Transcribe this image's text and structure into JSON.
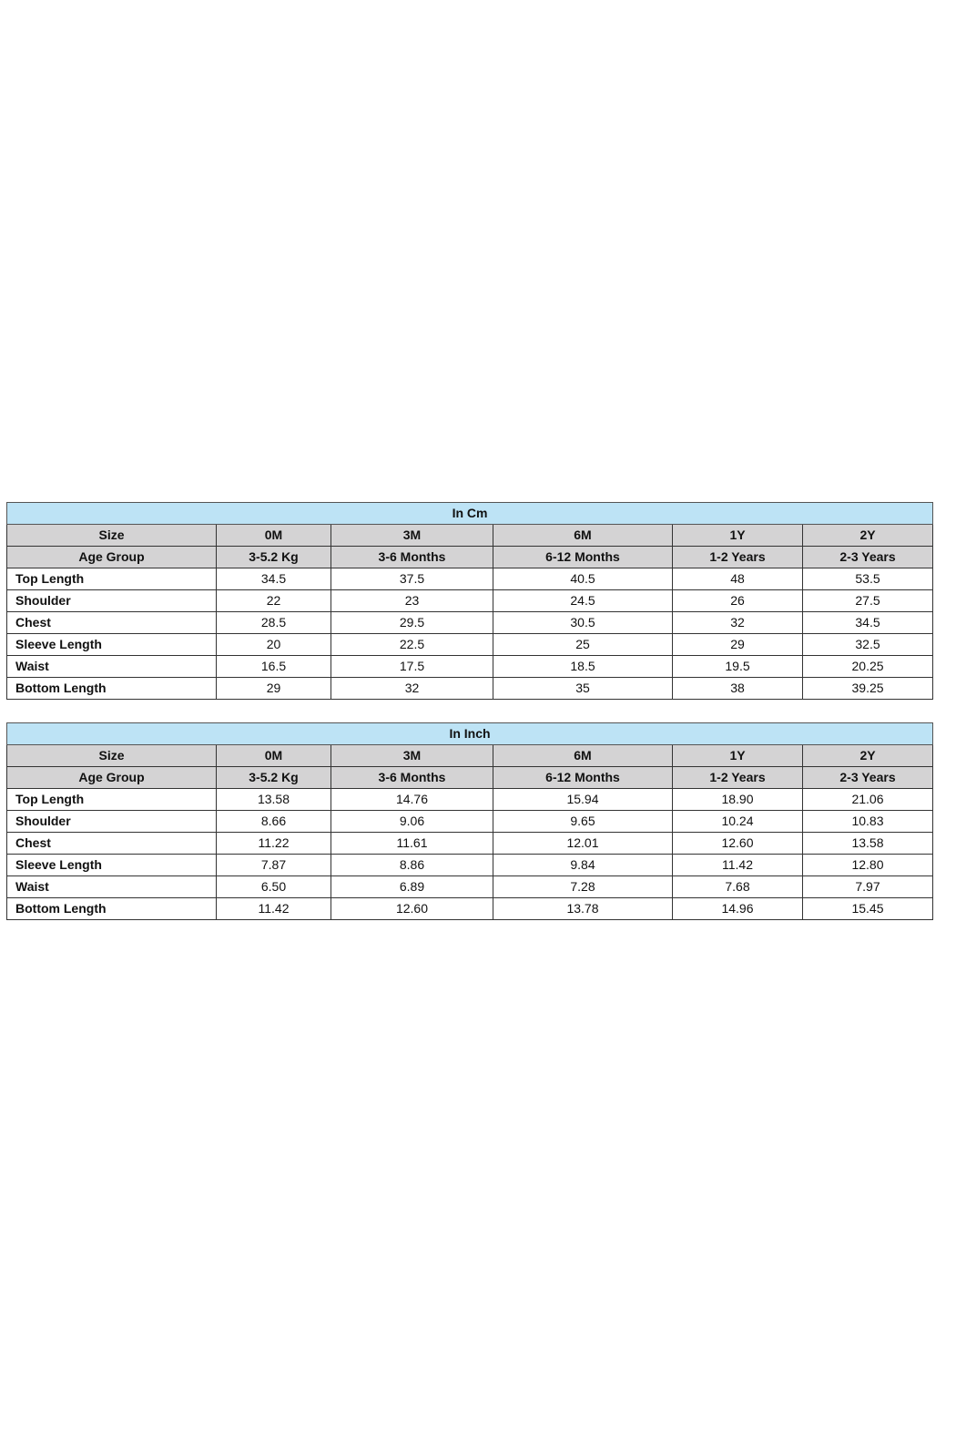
{
  "tables": [
    {
      "title": "In Cm",
      "header_rows": [
        [
          "Size",
          "0M",
          "3M",
          "6M",
          "1Y",
          "2Y"
        ],
        [
          "Age Group",
          "3-5.2 Kg",
          "3-6 Months",
          "6-12 Months",
          "1-2 Years",
          "2-3 Years"
        ]
      ],
      "rows": [
        [
          "Top Length",
          "34.5",
          "37.5",
          "40.5",
          "48",
          "53.5"
        ],
        [
          "Shoulder",
          "22",
          "23",
          "24.5",
          "26",
          "27.5"
        ],
        [
          "Chest",
          "28.5",
          "29.5",
          "30.5",
          "32",
          "34.5"
        ],
        [
          "Sleeve Length",
          "20",
          "22.5",
          "25",
          "29",
          "32.5"
        ],
        [
          "Waist",
          "16.5",
          "17.5",
          "18.5",
          "19.5",
          "20.25"
        ],
        [
          "Bottom Length",
          "29",
          "32",
          "35",
          "38",
          "39.25"
        ]
      ]
    },
    {
      "title": "In Inch",
      "header_rows": [
        [
          "Size",
          "0M",
          "3M",
          "6M",
          "1Y",
          "2Y"
        ],
        [
          "Age Group",
          "3-5.2 Kg",
          "3-6 Months",
          "6-12 Months",
          "1-2 Years",
          "2-3 Years"
        ]
      ],
      "rows": [
        [
          "Top Length",
          "13.58",
          "14.76",
          "15.94",
          "18.90",
          "21.06"
        ],
        [
          "Shoulder",
          "8.66",
          "9.06",
          "9.65",
          "10.24",
          "10.83"
        ],
        [
          "Chest",
          "11.22",
          "11.61",
          "12.01",
          "12.60",
          "13.58"
        ],
        [
          "Sleeve Length",
          "7.87",
          "8.86",
          "9.84",
          "11.42",
          "12.80"
        ],
        [
          "Waist",
          "6.50",
          "6.89",
          "7.28",
          "7.68",
          "7.97"
        ],
        [
          "Bottom Length",
          "11.42",
          "12.60",
          "13.78",
          "14.96",
          "15.45"
        ]
      ]
    }
  ],
  "colors": {
    "title_bg": "#bde3f5",
    "header_bg": "#d4d3d4"
  }
}
